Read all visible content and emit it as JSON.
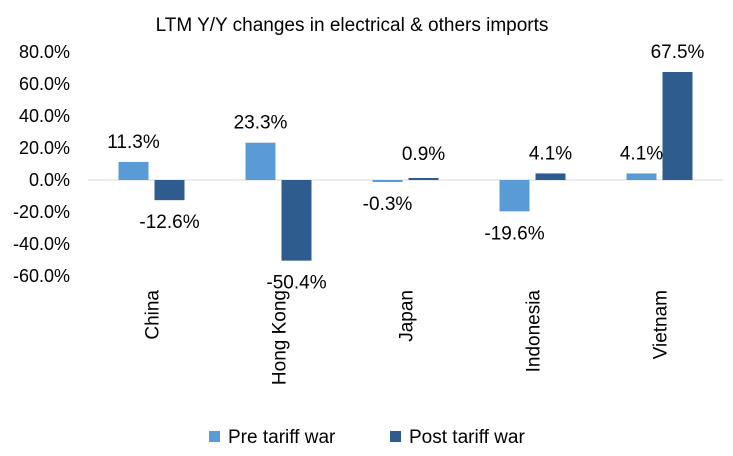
{
  "chart_data": {
    "type": "bar",
    "title": "LTM Y/Y changes in electrical & others imports",
    "xlabel": "",
    "ylabel": "",
    "categories": [
      "China",
      "Hong Kong",
      "Japan",
      "Indonesia",
      "Vietnam"
    ],
    "series": [
      {
        "name": "Pre tariff war",
        "color": "#5b9bd5",
        "values": [
          11.3,
          23.3,
          -0.3,
          -19.6,
          4.1
        ],
        "labels": [
          "11.3%",
          "23.3%",
          "-0.3%",
          "-19.6%",
          "4.1%"
        ]
      },
      {
        "name": "Post tariff war",
        "color": "#2f5c8f",
        "values": [
          -12.6,
          -50.4,
          0.9,
          4.1,
          67.5
        ],
        "labels": [
          "-12.6%",
          "-50.4%",
          "0.9%",
          "4.1%",
          "67.5%"
        ]
      }
    ],
    "ylim": [
      -60,
      80
    ],
    "yticks": [
      80,
      60,
      40,
      20,
      0,
      -20,
      -40,
      -60
    ],
    "ytick_labels": [
      "80.0%",
      "60.0%",
      "40.0%",
      "20.0%",
      "0.0%",
      "-20.0%",
      "-40.0%",
      "-60.0%"
    ],
    "grid": false,
    "legend_position": "bottom",
    "category_label_rotation": "vertical"
  }
}
